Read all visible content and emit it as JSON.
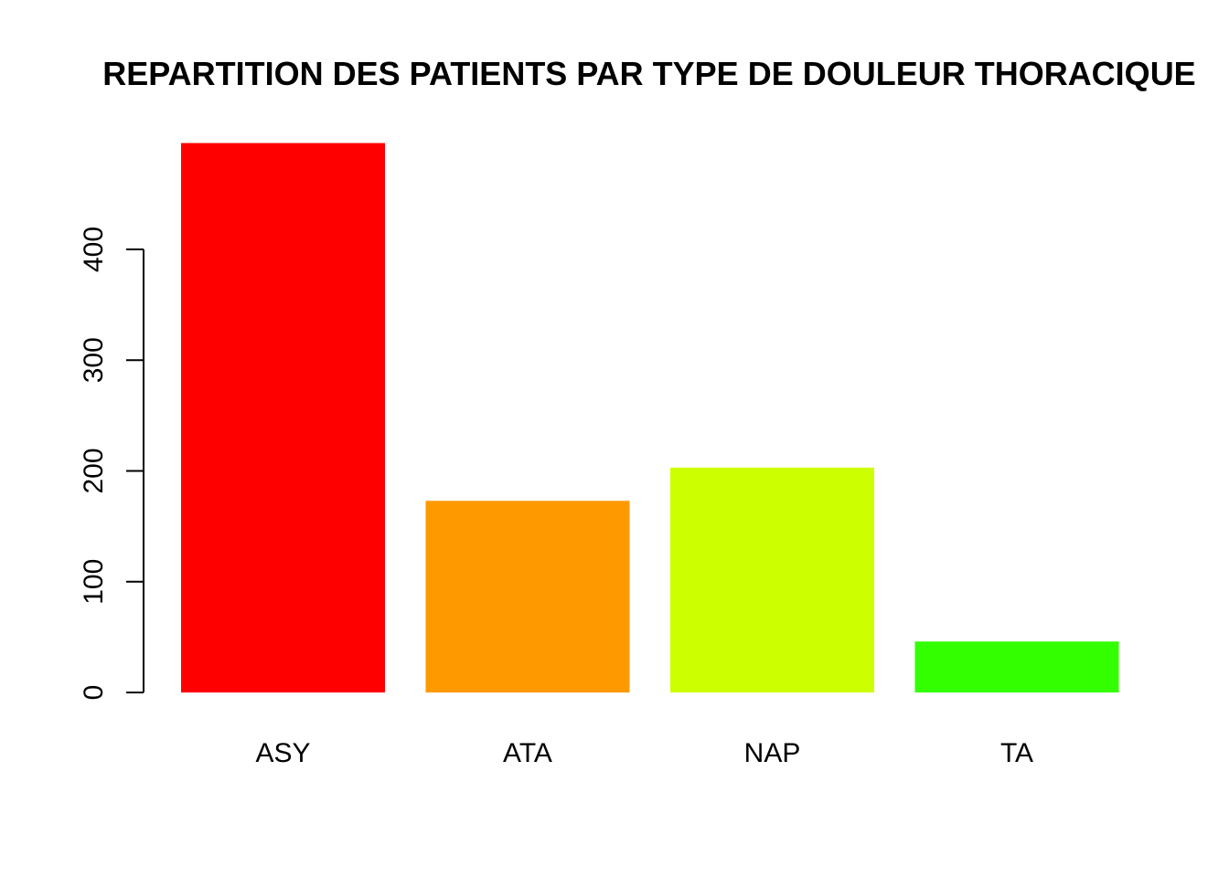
{
  "chart_data": {
    "type": "bar",
    "title": "REPARTITION DES PATIENTS PAR TYPE DE DOULEUR THORACIQUE",
    "xlabel": "",
    "ylabel": "",
    "categories": [
      "ASY",
      "ATA",
      "NAP",
      "TA"
    ],
    "values": [
      496,
      173,
      203,
      46
    ],
    "colors": [
      "#FF0000",
      "#FF9900",
      "#CCFF00",
      "#33FF00"
    ],
    "yticks": [
      0,
      100,
      200,
      300,
      400
    ],
    "ytick_labels": [
      "0",
      "100",
      "200",
      "300",
      "400"
    ],
    "ylim": [
      0,
      496
    ],
    "grid": false,
    "legend": "none"
  }
}
